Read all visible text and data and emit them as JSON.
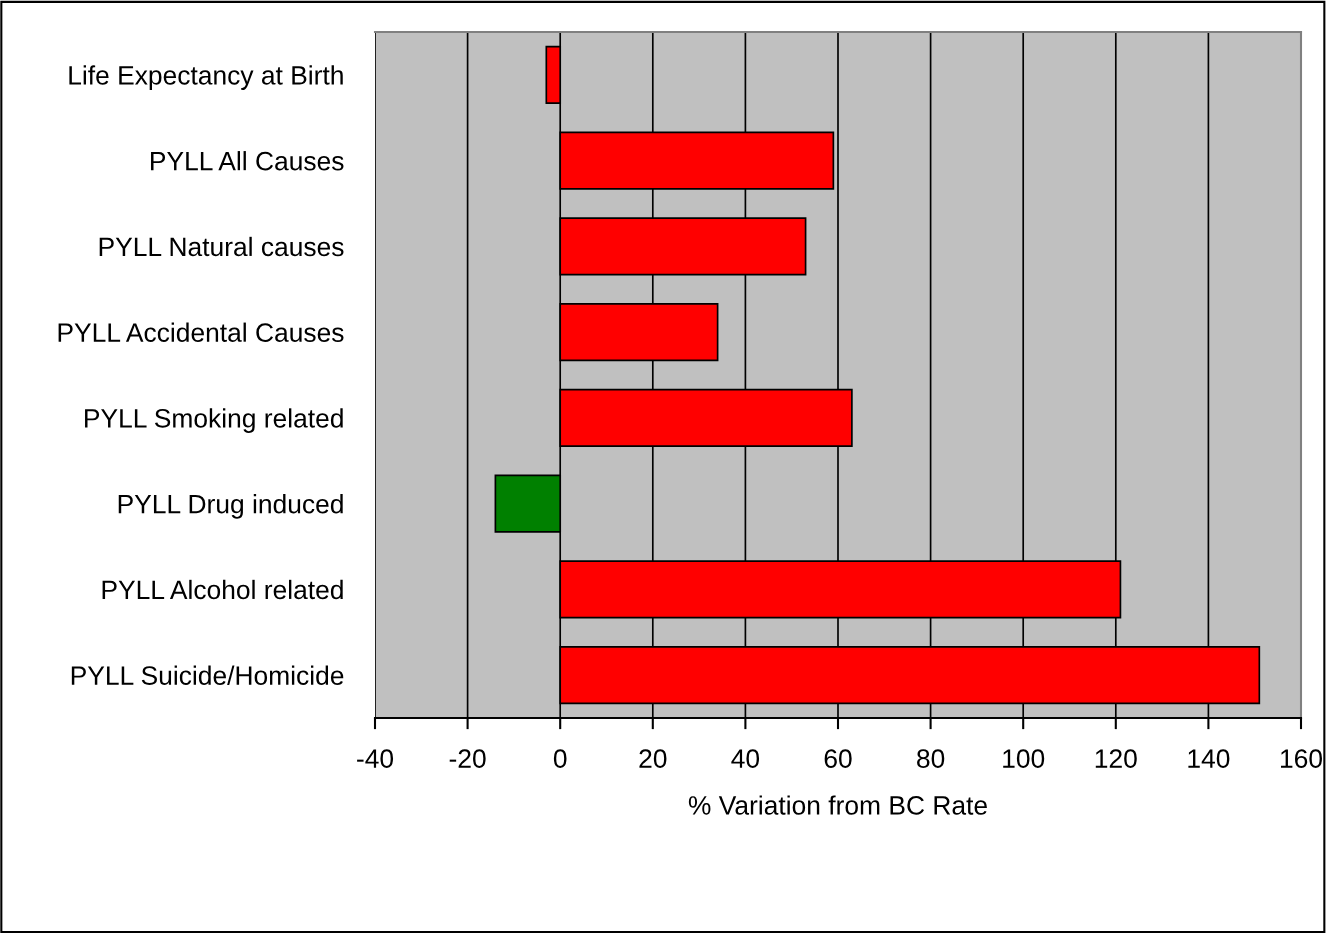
{
  "chart_data": {
    "type": "bar",
    "orientation": "horizontal",
    "xlabel": "% Variation from BC Rate",
    "categories": [
      "Life Expectancy at Birth",
      "PYLL All Causes",
      "PYLL Natural causes",
      "PYLL Accidental Causes",
      "PYLL Smoking related",
      "PYLL Drug induced",
      "PYLL Alcohol related",
      "PYLL Suicide/Homicide"
    ],
    "values": [
      -3,
      59,
      53,
      34,
      63,
      -14,
      121,
      151
    ],
    "colors": [
      "#ff0000",
      "#ff0000",
      "#ff0000",
      "#ff0000",
      "#ff0000",
      "#008000",
      "#ff0000",
      "#ff0000"
    ],
    "xlim": [
      -40,
      160
    ],
    "xticks": [
      -40,
      -20,
      0,
      20,
      40,
      60,
      80,
      100,
      120,
      140,
      160
    ],
    "grid": "x"
  }
}
